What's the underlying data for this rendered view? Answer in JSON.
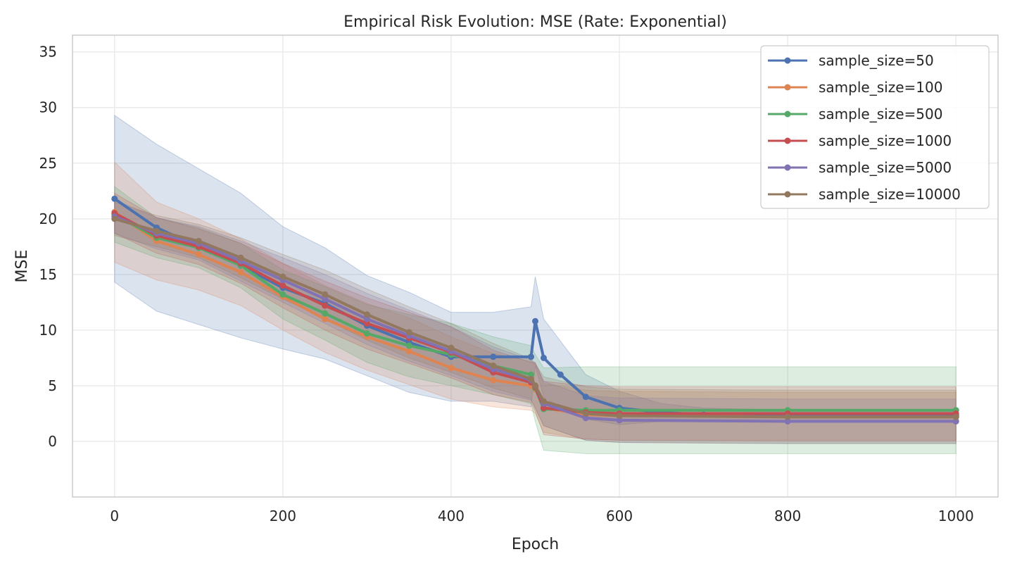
{
  "chart_data": {
    "type": "line",
    "title": "Empirical Risk Evolution: MSE (Rate: Exponential)",
    "xlabel": "Epoch",
    "ylabel": "MSE",
    "xlim": [
      -50,
      1050
    ],
    "ylim": [
      -5,
      36.5
    ],
    "xticks": [
      0,
      200,
      400,
      600,
      800,
      1000
    ],
    "yticks": [
      0,
      5,
      10,
      15,
      20,
      25,
      30,
      35
    ],
    "grid": true,
    "legend_position": "top-right",
    "series": [
      {
        "name": "sample_size=50",
        "color": "#4c72b0",
        "x": [
          0,
          50,
          100,
          150,
          200,
          250,
          300,
          350,
          400,
          450,
          495,
          500,
          510,
          530,
          560,
          600,
          650,
          700,
          800,
          1000
        ],
        "y": [
          21.8,
          19.2,
          17.5,
          15.8,
          13.8,
          12.4,
          10.4,
          8.9,
          7.6,
          7.6,
          7.6,
          10.8,
          7.5,
          6.0,
          4.0,
          3.0,
          2.6,
          2.4,
          2.3,
          2.3
        ],
        "band": [
          7.5,
          7.5,
          7.0,
          6.5,
          5.5,
          5.0,
          4.5,
          4.5,
          4.0,
          4.0,
          4.5,
          4.0,
          3.5,
          3.0,
          2.0,
          1.5,
          0.8,
          0.6,
          0.5,
          0.5
        ]
      },
      {
        "name": "sample_size=100",
        "color": "#dd8452",
        "x": [
          0,
          50,
          100,
          150,
          200,
          250,
          300,
          350,
          400,
          450,
          495,
          500,
          510,
          560,
          600,
          800,
          1000
        ],
        "y": [
          20.6,
          18.0,
          16.8,
          15.2,
          13.0,
          11.0,
          9.4,
          8.1,
          6.6,
          5.5,
          5.0,
          4.7,
          3.0,
          2.4,
          2.3,
          2.2,
          2.2
        ],
        "band": [
          4.5,
          3.5,
          3.2,
          3.0,
          3.0,
          3.0,
          3.0,
          3.0,
          2.8,
          2.4,
          2.2,
          2.2,
          2.2,
          2.2,
          2.2,
          2.2,
          2.2
        ]
      },
      {
        "name": "sample_size=500",
        "color": "#55a868",
        "x": [
          0,
          50,
          100,
          150,
          200,
          250,
          300,
          350,
          400,
          450,
          495,
          500,
          510,
          560,
          600,
          800,
          1000
        ],
        "y": [
          20.4,
          18.3,
          17.4,
          15.8,
          13.2,
          11.5,
          9.7,
          8.6,
          7.8,
          6.8,
          6.0,
          4.8,
          2.9,
          2.8,
          2.8,
          2.8,
          2.8
        ],
        "band": [
          2.5,
          1.8,
          1.8,
          2.0,
          2.2,
          2.4,
          2.6,
          2.8,
          2.8,
          2.6,
          2.6,
          3.0,
          3.7,
          3.9,
          3.9,
          3.9,
          3.9
        ]
      },
      {
        "name": "sample_size=1000",
        "color": "#c44e52",
        "x": [
          0,
          50,
          100,
          150,
          200,
          250,
          300,
          350,
          400,
          450,
          495,
          500,
          510,
          560,
          600,
          800,
          1000
        ],
        "y": [
          20.5,
          18.5,
          17.5,
          16.0,
          14.0,
          12.2,
          10.6,
          9.3,
          8.0,
          6.2,
          5.3,
          4.9,
          3.0,
          2.6,
          2.5,
          2.5,
          2.5
        ],
        "band": [
          1.8,
          1.6,
          1.6,
          1.8,
          2.0,
          2.2,
          2.3,
          2.3,
          2.3,
          2.0,
          1.8,
          2.2,
          2.4,
          2.4,
          2.4,
          2.4,
          2.4
        ]
      },
      {
        "name": "sample_size=5000",
        "color": "#8172b3",
        "x": [
          0,
          50,
          100,
          150,
          200,
          250,
          300,
          350,
          400,
          450,
          495,
          500,
          510,
          560,
          600,
          800,
          1000
        ],
        "y": [
          20.2,
          18.7,
          17.8,
          16.2,
          14.5,
          12.8,
          11.0,
          9.5,
          8.1,
          6.5,
          5.5,
          5.0,
          3.4,
          2.1,
          1.9,
          1.8,
          1.8
        ],
        "band": [
          1.5,
          1.4,
          1.5,
          1.8,
          2.0,
          2.2,
          2.3,
          2.3,
          2.2,
          2.0,
          1.8,
          2.0,
          2.0,
          2.0,
          2.0,
          2.0,
          2.0
        ]
      },
      {
        "name": "sample_size=10000",
        "color": "#937860",
        "x": [
          0,
          50,
          100,
          150,
          200,
          250,
          300,
          350,
          400,
          450,
          495,
          500,
          510,
          560,
          600,
          800,
          1000
        ],
        "y": [
          20.0,
          18.9,
          18.0,
          16.5,
          14.8,
          13.2,
          11.4,
          9.8,
          8.4,
          6.8,
          5.6,
          5.0,
          3.6,
          2.5,
          2.3,
          2.2,
          2.2
        ],
        "band": [
          1.5,
          1.4,
          1.5,
          1.8,
          2.0,
          2.2,
          2.3,
          2.3,
          2.2,
          2.0,
          1.8,
          2.0,
          2.2,
          2.4,
          2.4,
          2.4,
          2.4
        ]
      }
    ]
  }
}
